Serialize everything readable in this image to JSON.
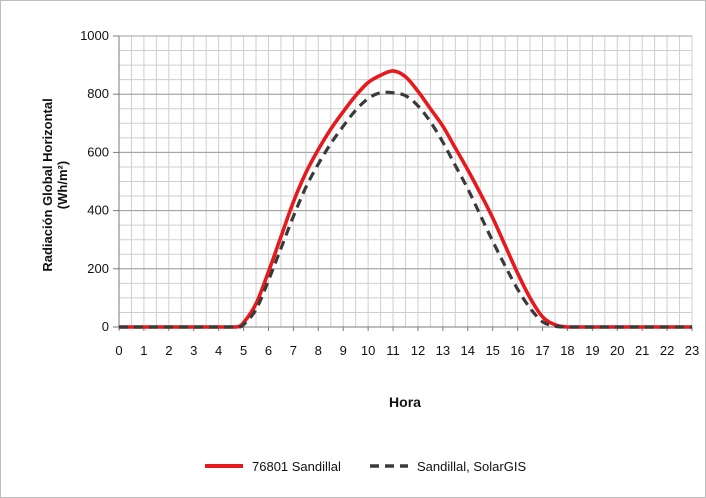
{
  "chart_data": {
    "type": "line",
    "xlabel": "Hora",
    "ylabel_line1": "Radiación Global Horizontal",
    "ylabel_line2": "(Wh/m²)",
    "x_ticks": [
      0,
      1,
      2,
      3,
      4,
      5,
      6,
      7,
      8,
      9,
      10,
      11,
      12,
      13,
      14,
      15,
      16,
      17,
      18,
      19,
      20,
      21,
      22,
      23
    ],
    "y_ticks": [
      0,
      200,
      400,
      600,
      800,
      1000
    ],
    "xlim": [
      0,
      23
    ],
    "ylim": [
      0,
      1000
    ],
    "grid": true,
    "legend_position": "bottom",
    "series": [
      {
        "name": "76801 Sandillal",
        "color": "#e8191c",
        "dash": "solid",
        "x": [
          0,
          1,
          2,
          3,
          4,
          4.7,
          5,
          5.5,
          6,
          6.5,
          7,
          7.5,
          8,
          8.5,
          9,
          9.5,
          10,
          10.5,
          11,
          11.5,
          12,
          12.5,
          13,
          13.5,
          14,
          14.5,
          15,
          15.5,
          16,
          16.5,
          17,
          17.5,
          18,
          19,
          20,
          21,
          22,
          23
        ],
        "y": [
          0,
          0,
          0,
          0,
          0,
          0,
          15,
          80,
          190,
          310,
          430,
          530,
          610,
          680,
          740,
          795,
          840,
          865,
          880,
          860,
          810,
          750,
          690,
          615,
          540,
          460,
          375,
          280,
          185,
          100,
          35,
          8,
          0,
          0,
          0,
          0,
          0,
          0
        ]
      },
      {
        "name": "Sandillal, SolarGIS",
        "color": "#3a3a3a",
        "dash": "dashed",
        "x": [
          0,
          1,
          2,
          3,
          4,
          4.8,
          5,
          5.5,
          6,
          6.5,
          7,
          7.5,
          8,
          8.5,
          9,
          9.5,
          10,
          10.5,
          11,
          11.5,
          12,
          12.5,
          13,
          13.5,
          14,
          14.5,
          15,
          15.5,
          16,
          16.5,
          17,
          17.5,
          18,
          19,
          20,
          21,
          22,
          23
        ],
        "y": [
          0,
          0,
          0,
          0,
          0,
          0,
          8,
          60,
          160,
          270,
          380,
          480,
          560,
          630,
          690,
          745,
          785,
          805,
          805,
          795,
          760,
          705,
          635,
          555,
          475,
          385,
          295,
          210,
          130,
          65,
          18,
          3,
          0,
          0,
          0,
          0,
          0,
          0
        ]
      }
    ]
  }
}
